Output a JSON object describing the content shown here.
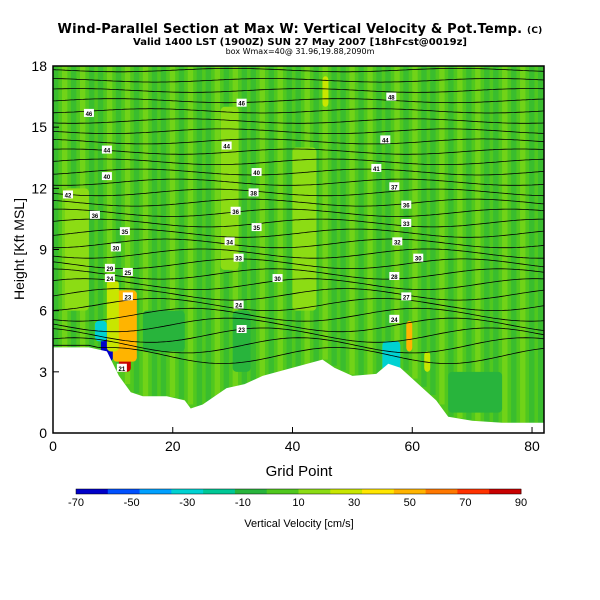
{
  "header": {
    "title": "Wind-Parallel Section at Max W: Vertical Velocity & Pot.Temp.",
    "title_mark": "(C)",
    "subtitle": "Valid 1400 LST (1900Z) SUN 27 May 2007 [18hFcst@0019z]",
    "subsubtitle": "box Wmax=40@ 31.96,19.88,2090m"
  },
  "chart_data": {
    "type": "heatmap",
    "title": "Wind-Parallel Section at Max W: Vertical Velocity & Pot.Temp.",
    "xlabel": "Grid Point",
    "ylabel": "Height [Kft MSL]",
    "xlim": [
      0,
      82
    ],
    "ylim": [
      0,
      18
    ],
    "xticks": [
      0,
      20,
      40,
      60,
      80
    ],
    "yticks": [
      0,
      3,
      6,
      9,
      12,
      15,
      18
    ],
    "colorbar": {
      "label": "Vertical Velocity [cm/s]",
      "ticks": [
        -70,
        -50,
        -30,
        -10,
        10,
        30,
        50,
        70,
        90
      ],
      "colors": [
        "#0000c8",
        "#0050ff",
        "#00a0ff",
        "#00d2d2",
        "#00c896",
        "#28b43c",
        "#50c81e",
        "#8cdc14",
        "#c8e600",
        "#ffe600",
        "#ffb400",
        "#ff7800",
        "#ff3200",
        "#c80000"
      ]
    },
    "terrain": [
      [
        0,
        4.2
      ],
      [
        6,
        4.2
      ],
      [
        9,
        4.0
      ],
      [
        11,
        2.8
      ],
      [
        12,
        2.4
      ],
      [
        13,
        2.0
      ],
      [
        15,
        1.8
      ],
      [
        19,
        1.8
      ],
      [
        22,
        1.6
      ],
      [
        23,
        1.2
      ],
      [
        25,
        1.4
      ],
      [
        27,
        1.8
      ],
      [
        29,
        2.2
      ],
      [
        32,
        2.4
      ],
      [
        35,
        2.8
      ],
      [
        40,
        3.2
      ],
      [
        45,
        3.6
      ],
      [
        47,
        3.2
      ],
      [
        50,
        2.8
      ],
      [
        54,
        2.9
      ],
      [
        56,
        3.4
      ],
      [
        58,
        3.2
      ],
      [
        61,
        2.4
      ],
      [
        64,
        1.6
      ],
      [
        66,
        0.8
      ],
      [
        70,
        0.6
      ],
      [
        75,
        0.5
      ],
      [
        82,
        0.5
      ]
    ],
    "velocity_cells": [
      {
        "x": [
          8,
          10
        ],
        "y": [
          3.5,
          5.0
        ],
        "w": -70
      },
      {
        "x": [
          7,
          9
        ],
        "y": [
          4.5,
          5.5
        ],
        "w": -30
      },
      {
        "x": [
          11,
          13
        ],
        "y": [
          3.0,
          6.0
        ],
        "w": 90
      },
      {
        "x": [
          10,
          14
        ],
        "y": [
          3.5,
          7.0
        ],
        "w": 50
      },
      {
        "x": [
          9,
          11
        ],
        "y": [
          4.0,
          7.5
        ],
        "w": 30
      },
      {
        "x": [
          45,
          46
        ],
        "y": [
          16.0,
          17.5
        ],
        "w": 30
      },
      {
        "x": [
          59,
          60
        ],
        "y": [
          4.0,
          5.5
        ],
        "w": 50
      },
      {
        "x": [
          62,
          63
        ],
        "y": [
          3.0,
          4.0
        ],
        "w": 30
      },
      {
        "x": [
          55,
          58
        ],
        "y": [
          3.0,
          4.5
        ],
        "w": -30
      },
      {
        "x": [
          15,
          22
        ],
        "y": [
          4.0,
          6.0
        ],
        "w": -10
      },
      {
        "x": [
          30,
          33
        ],
        "y": [
          3.0,
          6.0
        ],
        "w": -10
      },
      {
        "x": [
          2,
          6
        ],
        "y": [
          6.0,
          12.0
        ],
        "w": 10
      },
      {
        "x": [
          28,
          31
        ],
        "y": [
          8.0,
          16.0
        ],
        "w": 10
      },
      {
        "x": [
          40,
          44
        ],
        "y": [
          6.0,
          14.0
        ],
        "w": 10
      },
      {
        "x": [
          66,
          75
        ],
        "y": [
          1.0,
          3.0
        ],
        "w": -10
      }
    ],
    "isentrope_heights": [
      3.8,
      4.3,
      4.8,
      5.3,
      5.8,
      6.3,
      6.8,
      7.3,
      7.8,
      8.3,
      8.8,
      9.3,
      9.8,
      10.3,
      10.8,
      11.3,
      11.8,
      12.3,
      12.8,
      13.3,
      13.8,
      14.3,
      14.8,
      15.3,
      15.8,
      16.3,
      16.8,
      17.3,
      17.8
    ],
    "isentrope_labels": [
      {
        "x": 6,
        "y": 15.7,
        "text": "46"
      },
      {
        "x": 31.5,
        "y": 16.2,
        "text": "46"
      },
      {
        "x": 56.5,
        "y": 16.5,
        "text": "48"
      },
      {
        "x": 9,
        "y": 13.9,
        "text": "44"
      },
      {
        "x": 29,
        "y": 14.1,
        "text": "44"
      },
      {
        "x": 55.5,
        "y": 14.4,
        "text": "44"
      },
      {
        "x": 9,
        "y": 12.6,
        "text": "40"
      },
      {
        "x": 34,
        "y": 12.8,
        "text": "40"
      },
      {
        "x": 54,
        "y": 13.0,
        "text": "41"
      },
      {
        "x": 2.5,
        "y": 11.7,
        "text": "42"
      },
      {
        "x": 33.5,
        "y": 11.8,
        "text": "38"
      },
      {
        "x": 57,
        "y": 12.1,
        "text": "37"
      },
      {
        "x": 7,
        "y": 10.7,
        "text": "36"
      },
      {
        "x": 30.5,
        "y": 10.9,
        "text": "36"
      },
      {
        "x": 59,
        "y": 11.2,
        "text": "36"
      },
      {
        "x": 12,
        "y": 9.9,
        "text": "35"
      },
      {
        "x": 34,
        "y": 10.1,
        "text": "35"
      },
      {
        "x": 59,
        "y": 10.3,
        "text": "33"
      },
      {
        "x": 10.5,
        "y": 9.1,
        "text": "30"
      },
      {
        "x": 29.5,
        "y": 9.4,
        "text": "34"
      },
      {
        "x": 57.5,
        "y": 9.4,
        "text": "32"
      },
      {
        "x": 9.5,
        "y": 8.1,
        "text": "29"
      },
      {
        "x": 31,
        "y": 8.6,
        "text": "33"
      },
      {
        "x": 61,
        "y": 8.6,
        "text": "30"
      },
      {
        "x": 9.5,
        "y": 7.6,
        "text": "24"
      },
      {
        "x": 12.5,
        "y": 7.9,
        "text": "25"
      },
      {
        "x": 37.5,
        "y": 7.6,
        "text": "30"
      },
      {
        "x": 57,
        "y": 7.7,
        "text": "28"
      },
      {
        "x": 12.5,
        "y": 6.7,
        "text": "23"
      },
      {
        "x": 31,
        "y": 6.3,
        "text": "24"
      },
      {
        "x": 59,
        "y": 6.7,
        "text": "27"
      },
      {
        "x": 31.5,
        "y": 5.1,
        "text": "23"
      },
      {
        "x": 57,
        "y": 5.6,
        "text": "24"
      },
      {
        "x": 11.5,
        "y": 3.2,
        "text": "21"
      }
    ]
  }
}
